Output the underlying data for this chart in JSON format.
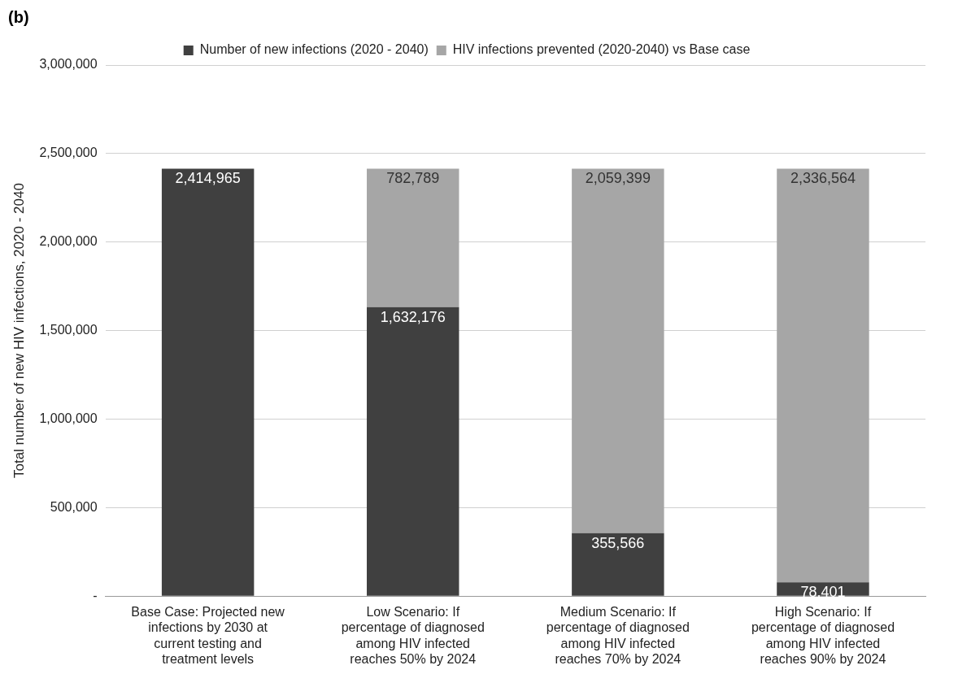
{
  "chart_data": {
    "type": "bar",
    "title": "(b)",
    "ylabel": "Total number of new HIV infections, 2020 - 2040",
    "categories": [
      "Base Case: Projected new infections by 2030 at current testing and treatment levels",
      "Low Scenario: If percentage of diagnosed among HIV infected reaches 50% by 2024",
      "Medium Scenario:  If percentage of diagnosed among HIV infected reaches 70% by 2024",
      "High Scenario:  If percentage of diagnosed among HIV infected reaches 90% by 2024"
    ],
    "series": [
      {
        "name": "Number of new infections (2020 - 2040)",
        "color": "#404040",
        "values": [
          2414965,
          1632176,
          355566,
          78401
        ],
        "value_labels": [
          "2,414,965",
          "1,632,176",
          "355,566",
          "78,401"
        ]
      },
      {
        "name": "HIV infections prevented (2020-2040) vs Base case",
        "color": "#a6a6a6",
        "values": [
          null,
          782789,
          2059399,
          2336564
        ],
        "value_labels": [
          null,
          "782,789",
          "2,059,399",
          "2,336,564"
        ]
      }
    ],
    "stacked": true,
    "legend": "top",
    "grid": "y",
    "ylim": [
      0,
      3000000
    ],
    "yticks": [
      {
        "value": 0,
        "label": "-"
      },
      {
        "value": 500000,
        "label": "500,000"
      },
      {
        "value": 1000000,
        "label": "1,000,000"
      },
      {
        "value": 1500000,
        "label": "1,500,000"
      },
      {
        "value": 2000000,
        "label": "2,000,000"
      },
      {
        "value": 2500000,
        "label": "2,500,000"
      },
      {
        "value": 3000000,
        "label": "3,000,000"
      }
    ]
  }
}
